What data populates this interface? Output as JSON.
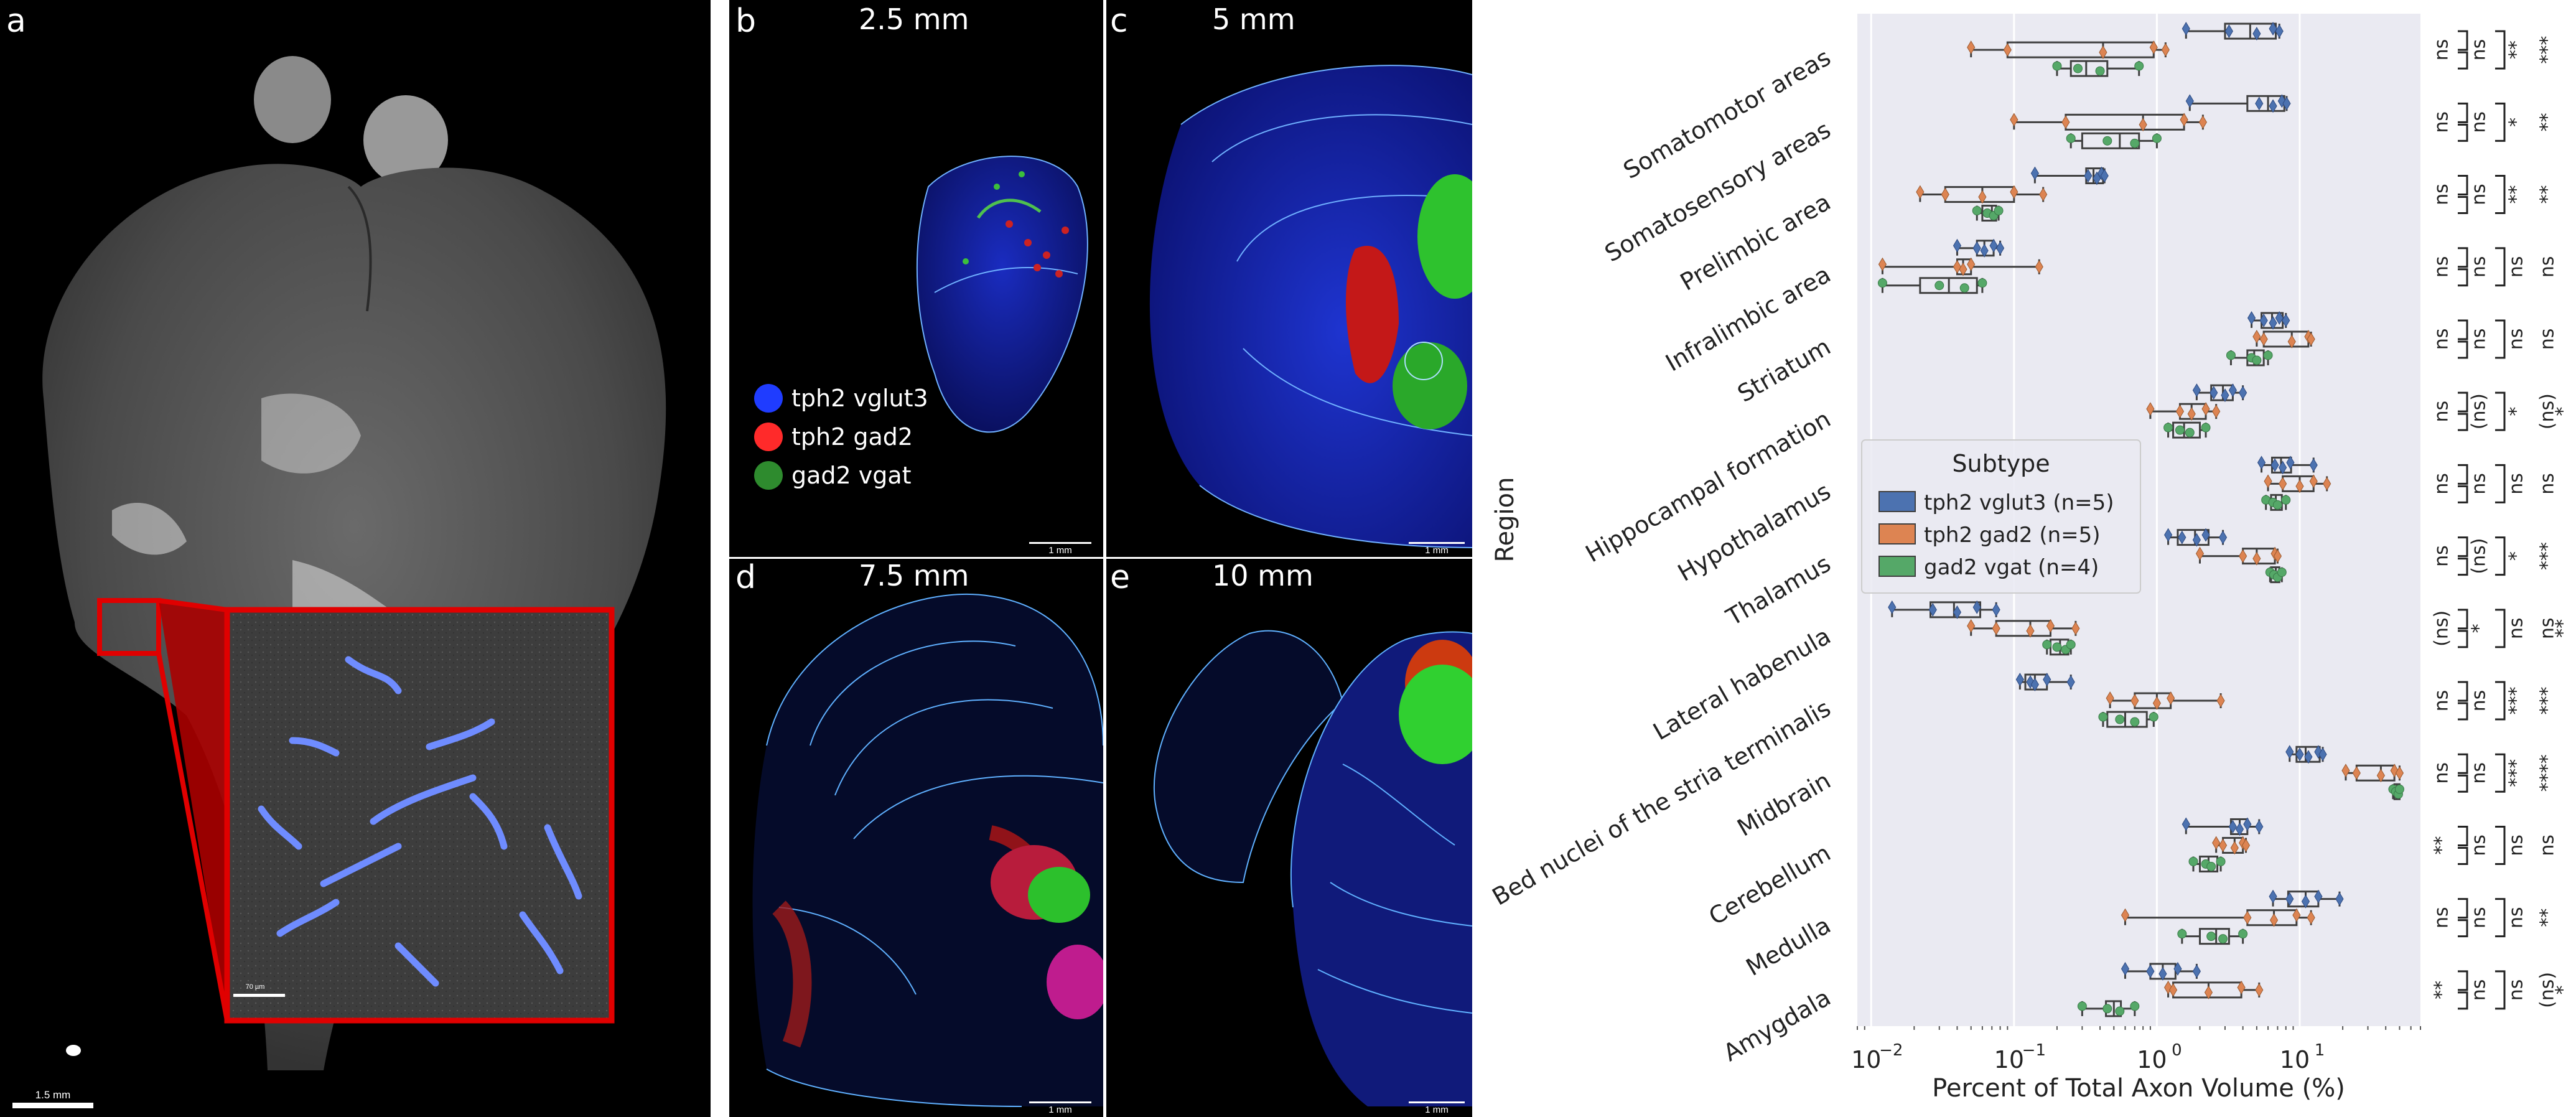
{
  "panels": {
    "a": {
      "label": "a",
      "scalebar": "1.5 mm",
      "inset_scalebar": "70 µm"
    },
    "b": {
      "label": "b",
      "title": "2.5 mm",
      "scalebar": "1 mm"
    },
    "c": {
      "label": "c",
      "title": "5 mm",
      "scalebar": "1 mm"
    },
    "d": {
      "label": "d",
      "title": "7.5 mm",
      "scalebar": "1 mm"
    },
    "e": {
      "label": "e",
      "title": "10 mm",
      "scalebar": "1 mm"
    }
  },
  "image_legend": [
    {
      "label": "tph2 vglut3",
      "color": "#1f3cff"
    },
    {
      "label": "tph2 gad2",
      "color": "#ff2a2a"
    },
    {
      "label": "gad2 vgat",
      "color": "#2e8b2e"
    }
  ],
  "chart_data": {
    "type": "box",
    "orientation": "horizontal",
    "xscale": "log",
    "xlim": [
      0.008,
      70
    ],
    "xlabel": "Percent of Total Axon Volume (%)",
    "ylabel": "Region",
    "xticks": [
      {
        "value": 0.01,
        "base": "10",
        "exp": "−2"
      },
      {
        "value": 0.1,
        "base": "10",
        "exp": "−1"
      },
      {
        "value": 1,
        "base": "10",
        "exp": "0"
      },
      {
        "value": 10,
        "base": "10",
        "exp": "1"
      }
    ],
    "grid": true,
    "legend": {
      "title": "Subtype",
      "placement": "center-left",
      "entries": [
        {
          "label": "tph2 vglut3 (n=5)",
          "color": "#4c72b0"
        },
        {
          "label": "tph2 gad2 (n=5)",
          "color": "#dd8452"
        },
        {
          "label": "gad2 vgat (n=4)",
          "color": "#55a868"
        }
      ]
    },
    "categories": [
      "Somatomotor areas",
      "Somatosensory areas",
      "Prelimbic area",
      "Infralimbic area",
      "Striatum",
      "Hippocampal formation",
      "Hypothalamus",
      "Thalamus",
      "Lateral habenula",
      "Bed nuclei of the stria terminalis",
      "Midbrain",
      "Cerebellum",
      "Medulla",
      "Amygdala"
    ],
    "series": [
      {
        "name": "tph2 vglut3 (n=5)",
        "color": "#4c72b0",
        "data": [
          {
            "box": [
              3.0,
              4.5,
              6.8
            ],
            "points": [
              1.6,
              3.2,
              5.0,
              6.5,
              7.2
            ]
          },
          {
            "box": [
              4.3,
              6.0,
              7.8
            ],
            "points": [
              1.7,
              5.2,
              6.5,
              7.5,
              8.1
            ]
          },
          {
            "box": [
              0.32,
              0.36,
              0.42
            ],
            "points": [
              0.14,
              0.33,
              0.38,
              0.41,
              0.43
            ]
          },
          {
            "box": [
              0.055,
              0.062,
              0.072
            ],
            "points": [
              0.04,
              0.055,
              0.062,
              0.072,
              0.08
            ]
          },
          {
            "box": [
              5.4,
              6.4,
              7.6
            ],
            "points": [
              4.6,
              5.6,
              6.5,
              7.2,
              8.0
            ]
          },
          {
            "box": [
              2.4,
              2.9,
              3.4
            ],
            "points": [
              1.9,
              2.5,
              3.0,
              3.4,
              4.0
            ]
          },
          {
            "box": [
              6.4,
              7.4,
              8.7
            ],
            "points": [
              5.4,
              6.7,
              7.6,
              8.6,
              12.5
            ]
          },
          {
            "box": [
              1.4,
              1.85,
              2.3
            ],
            "points": [
              1.2,
              1.5,
              1.9,
              2.2,
              2.9
            ]
          },
          {
            "box": [
              0.026,
              0.038,
              0.058
            ],
            "points": [
              0.014,
              0.027,
              0.04,
              0.055,
              0.075
            ]
          },
          {
            "box": [
              0.12,
              0.14,
              0.17
            ],
            "points": [
              0.11,
              0.13,
              0.14,
              0.17,
              0.25
            ]
          },
          {
            "box": [
              9.5,
              11.0,
              13.8
            ],
            "points": [
              8.5,
              10.0,
              11.5,
              13.5,
              14.5
            ]
          },
          {
            "box": [
              3.3,
              3.8,
              4.3
            ],
            "points": [
              1.6,
              3.4,
              3.8,
              4.3,
              5.2
            ]
          },
          {
            "box": [
              8.3,
              11.0,
              13.5
            ],
            "points": [
              6.5,
              8.5,
              11.0,
              13.5,
              19.0
            ]
          },
          {
            "box": [
              0.9,
              1.1,
              1.35
            ],
            "points": [
              0.6,
              0.9,
              1.1,
              1.4,
              1.9
            ]
          }
        ]
      },
      {
        "name": "tph2 gad2 (n=5)",
        "color": "#dd8452",
        "data": [
          {
            "box": [
              0.09,
              0.42,
              0.95
            ],
            "points": [
              0.05,
              0.09,
              0.42,
              0.95,
              1.15
            ]
          },
          {
            "box": [
              0.23,
              0.8,
              1.55
            ],
            "points": [
              0.1,
              0.23,
              0.8,
              1.55,
              2.1
            ]
          },
          {
            "box": [
              0.033,
              0.06,
              0.1
            ],
            "points": [
              0.022,
              0.033,
              0.06,
              0.1,
              0.16
            ]
          },
          {
            "box": [
              0.04,
              0.044,
              0.05
            ],
            "points": [
              0.012,
              0.04,
              0.044,
              0.05,
              0.15
            ]
          },
          {
            "box": [
              5.6,
              8.8,
              11.5
            ],
            "points": [
              5.0,
              5.6,
              8.8,
              11.5,
              12.0
            ]
          },
          {
            "box": [
              1.45,
              1.75,
              2.2
            ],
            "points": [
              0.9,
              1.45,
              1.75,
              2.2,
              2.6
            ]
          },
          {
            "box": [
              7.6,
              10.0,
              12.5
            ],
            "points": [
              6.0,
              7.6,
              10.0,
              12.5,
              15.5
            ]
          },
          {
            "box": [
              4.0,
              5.0,
              6.7
            ],
            "points": [
              2.0,
              4.0,
              5.0,
              6.7,
              7.0
            ]
          },
          {
            "box": [
              0.075,
              0.13,
              0.18
            ],
            "points": [
              0.05,
              0.075,
              0.13,
              0.18,
              0.27
            ]
          },
          {
            "box": [
              0.7,
              1.0,
              1.25
            ],
            "points": [
              0.47,
              0.7,
              1.0,
              1.25,
              2.8
            ]
          },
          {
            "box": [
              25.0,
              37.0,
              46.0
            ],
            "points": [
              21.0,
              25.0,
              37.0,
              46.0,
              50.0
            ]
          },
          {
            "box": [
              2.9,
              3.5,
              4.0
            ],
            "points": [
              2.6,
              2.9,
              3.5,
              4.0,
              4.2
            ]
          },
          {
            "box": [
              4.3,
              6.6,
              9.5
            ],
            "points": [
              0.6,
              4.3,
              6.6,
              9.5,
              12.0
            ]
          },
          {
            "box": [
              1.3,
              2.3,
              3.9
            ],
            "points": [
              1.2,
              1.3,
              2.3,
              3.9,
              5.2
            ]
          }
        ]
      },
      {
        "name": "gad2 vgat (n=4)",
        "color": "#55a868",
        "data": [
          {
            "box": [
              0.25,
              0.32,
              0.45
            ],
            "points": [
              0.2,
              0.28,
              0.4,
              0.75
            ]
          },
          {
            "box": [
              0.3,
              0.55,
              0.75
            ],
            "points": [
              0.25,
              0.45,
              0.7,
              1.0
            ]
          },
          {
            "box": [
              0.06,
              0.07,
              0.075
            ],
            "points": [
              0.055,
              0.065,
              0.072,
              0.078
            ]
          },
          {
            "box": [
              0.022,
              0.035,
              0.055
            ],
            "points": [
              0.012,
              0.03,
              0.045,
              0.06
            ]
          },
          {
            "box": [
              4.3,
              4.8,
              5.6
            ],
            "points": [
              3.3,
              4.6,
              5.0,
              6.0
            ]
          },
          {
            "box": [
              1.3,
              1.55,
              2.0
            ],
            "points": [
              1.2,
              1.45,
              1.7,
              2.2
            ]
          },
          {
            "box": [
              6.3,
              6.8,
              7.5
            ],
            "points": [
              5.8,
              6.5,
              7.0,
              8.0
            ]
          },
          {
            "box": [
              6.3,
              6.8,
              7.2
            ],
            "points": [
              6.2,
              6.6,
              7.0,
              7.5
            ]
          },
          {
            "box": [
              0.18,
              0.21,
              0.24
            ],
            "points": [
              0.17,
              0.2,
              0.23,
              0.25
            ]
          },
          {
            "box": [
              0.45,
              0.6,
              0.85
            ],
            "points": [
              0.42,
              0.55,
              0.7,
              0.95
            ]
          },
          {
            "box": [
              46.0,
              48.0,
              50.0
            ],
            "points": [
              45.0,
              47.0,
              49.0,
              50.0
            ]
          },
          {
            "box": [
              2.0,
              2.3,
              2.65
            ],
            "points": [
              1.8,
              2.2,
              2.4,
              2.8
            ]
          },
          {
            "box": [
              2.0,
              2.6,
              3.2
            ],
            "points": [
              1.5,
              2.4,
              2.9,
              4.0
            ]
          },
          {
            "box": [
              0.44,
              0.5,
              0.56
            ],
            "points": [
              0.3,
              0.45,
              0.55,
              0.7
            ]
          }
        ]
      }
    ],
    "significance": [
      [
        "ns",
        "ns",
        "**",
        "***"
      ],
      [
        "ns",
        "ns",
        "*",
        "**"
      ],
      [
        "ns",
        "ns",
        "**",
        "**"
      ],
      [
        "ns",
        "ns",
        "ns",
        "ns"
      ],
      [
        "ns",
        "ns",
        "ns",
        "ns"
      ],
      [
        "ns",
        "(ns)",
        "*",
        "(ns)",
        "*"
      ],
      [
        "ns",
        "ns",
        "ns",
        "ns"
      ],
      [
        "ns",
        "(ns)",
        "*",
        "***"
      ],
      [
        "(ns)",
        "*",
        "ns",
        "ns",
        "**"
      ],
      [
        "ns",
        "ns",
        "***",
        "***"
      ],
      [
        "ns",
        "ns",
        "***",
        "****"
      ],
      [
        "**",
        "ns",
        "ns",
        "ns"
      ],
      [
        "ns",
        "ns",
        "ns",
        "**"
      ],
      [
        "**",
        "ns",
        "ns",
        "(ns)",
        "*"
      ]
    ]
  }
}
